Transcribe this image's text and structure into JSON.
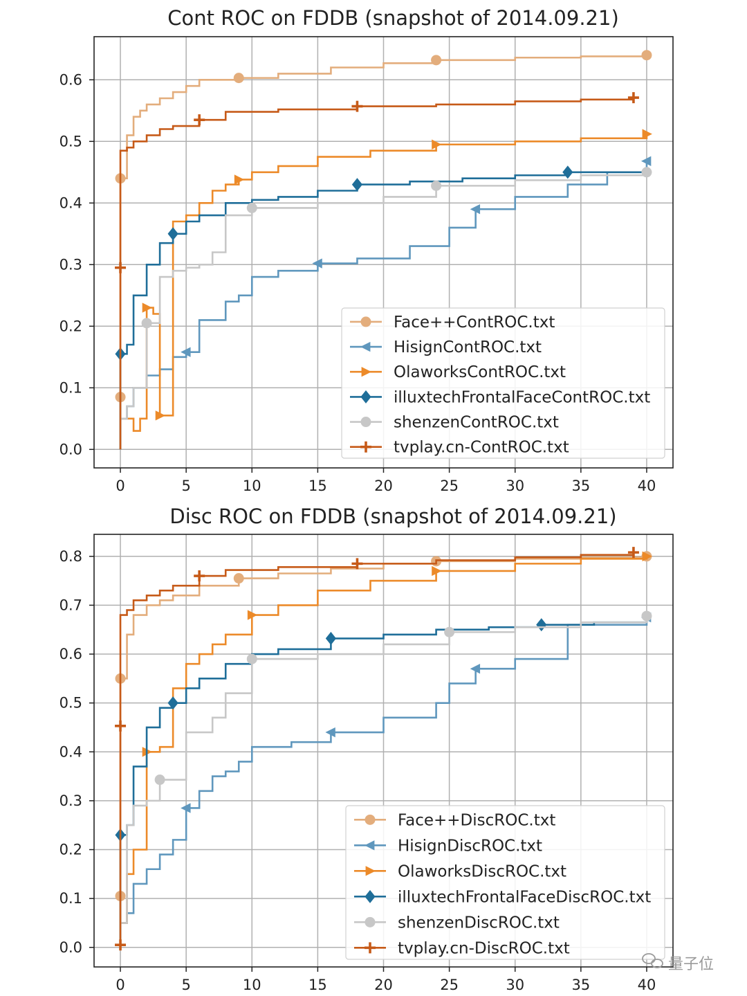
{
  "chart_data": [
    {
      "type": "line",
      "title": "Cont ROC on FDDB (snapshot of 2014.09.21)",
      "xlabel": "",
      "ylabel": "",
      "xlim": [
        -2,
        42
      ],
      "ylim": [
        -0.03,
        0.67
      ],
      "xticks": [
        "0",
        "5",
        "10",
        "15",
        "20",
        "25",
        "30",
        "35",
        "40"
      ],
      "yticks": [
        "0.0",
        "0.1",
        "0.2",
        "0.3",
        "0.4",
        "0.5",
        "0.6"
      ],
      "grid": true,
      "legend_position": "lower-right",
      "series": [
        {
          "name": "Face++ContROC.txt",
          "color": "#e3ad7c",
          "marker": "circle",
          "x": [
            0,
            0,
            0,
            0.5,
            1,
            1.5,
            2,
            3,
            4,
            5,
            6,
            7,
            9,
            12,
            16,
            20,
            24,
            30,
            35,
            40
          ],
          "y": [
            0.0,
            0.085,
            0.44,
            0.51,
            0.54,
            0.55,
            0.56,
            0.57,
            0.58,
            0.59,
            0.6,
            0.6,
            0.603,
            0.61,
            0.62,
            0.627,
            0.632,
            0.636,
            0.638,
            0.64
          ],
          "marker_indices": [
            1,
            2,
            12,
            16,
            19
          ]
        },
        {
          "name": "HisignContROC.txt",
          "color": "#5f97bd",
          "marker": "triangle-left",
          "x": [
            0,
            0.5,
            1,
            2,
            3,
            4,
            5,
            6,
            8,
            9,
            10,
            12,
            15,
            18,
            22,
            25,
            27,
            30,
            34,
            37,
            40
          ],
          "y": [
            0.05,
            0.07,
            0.1,
            0.12,
            0.13,
            0.15,
            0.158,
            0.21,
            0.24,
            0.25,
            0.28,
            0.29,
            0.302,
            0.31,
            0.33,
            0.36,
            0.39,
            0.41,
            0.43,
            0.45,
            0.468
          ],
          "marker_indices": [
            6,
            12,
            16,
            20
          ]
        },
        {
          "name": "OlaworksContROC.txt",
          "color": "#ec8a29",
          "marker": "triangle-right",
          "x": [
            0,
            1,
            1.5,
            2,
            2.5,
            3,
            4,
            5,
            6,
            7,
            8,
            9,
            10,
            12,
            15,
            19,
            24,
            30,
            35,
            40
          ],
          "y": [
            0.05,
            0.03,
            0.05,
            0.23,
            0.22,
            0.055,
            0.37,
            0.38,
            0.4,
            0.42,
            0.43,
            0.438,
            0.45,
            0.46,
            0.475,
            0.485,
            0.495,
            0.5,
            0.505,
            0.512
          ],
          "marker_indices": [
            3,
            5,
            11,
            16,
            19
          ]
        },
        {
          "name": "illuxtechFrontalFaceContROC.txt",
          "color": "#1f6e99",
          "marker": "diamond",
          "x": [
            0,
            0,
            0.5,
            1,
            2,
            3,
            4,
            5,
            6,
            8,
            10,
            12,
            15,
            18,
            22,
            26,
            30,
            34,
            40
          ],
          "y": [
            0.0,
            0.155,
            0.17,
            0.25,
            0.3,
            0.335,
            0.35,
            0.37,
            0.38,
            0.4,
            0.405,
            0.41,
            0.42,
            0.43,
            0.435,
            0.44,
            0.445,
            0.45,
            0.453
          ],
          "marker_indices": [
            1,
            6,
            13,
            17
          ]
        },
        {
          "name": "shenzenContROC.txt",
          "color": "#c7c7c7",
          "marker": "circle",
          "x": [
            0,
            0.5,
            1,
            2,
            3,
            4,
            5,
            6,
            7,
            8,
            10,
            15,
            20,
            24,
            30,
            35,
            40
          ],
          "y": [
            0.05,
            0.07,
            0.1,
            0.205,
            0.28,
            0.29,
            0.295,
            0.3,
            0.32,
            0.38,
            0.392,
            0.4,
            0.41,
            0.428,
            0.437,
            0.445,
            0.45
          ],
          "marker_indices": [
            3,
            10,
            13,
            16
          ]
        },
        {
          "name": "tvplay.cn-ContROC.txt",
          "color": "#c65a18",
          "marker": "plus",
          "x": [
            0,
            0,
            0,
            0.5,
            1,
            2,
            3,
            4,
            6,
            8,
            12,
            18,
            24,
            30,
            35,
            39
          ],
          "y": [
            0.0,
            0.295,
            0.485,
            0.49,
            0.5,
            0.51,
            0.52,
            0.525,
            0.535,
            0.548,
            0.552,
            0.557,
            0.56,
            0.565,
            0.568,
            0.571
          ],
          "marker_indices": [
            1,
            8,
            11,
            15
          ]
        }
      ]
    },
    {
      "type": "line",
      "title": "Disc ROC on FDDB (snapshot of 2014.09.21)",
      "xlabel": "",
      "ylabel": "",
      "xlim": [
        -2,
        42
      ],
      "ylim": [
        -0.04,
        0.845
      ],
      "xticks": [
        "0",
        "5",
        "10",
        "15",
        "20",
        "25",
        "30",
        "35",
        "40"
      ],
      "yticks": [
        "0.0",
        "0.1",
        "0.2",
        "0.3",
        "0.4",
        "0.5",
        "0.6",
        "0.7",
        "0.8"
      ],
      "grid": true,
      "legend_position": "lower-right",
      "series": [
        {
          "name": "Face++DiscROC.txt",
          "color": "#e3ad7c",
          "marker": "circle",
          "x": [
            0,
            0,
            0,
            0.5,
            1,
            2,
            3,
            4,
            6,
            9,
            12,
            16,
            20,
            24,
            30,
            35,
            40
          ],
          "y": [
            0.0,
            0.105,
            0.55,
            0.64,
            0.68,
            0.7,
            0.71,
            0.72,
            0.74,
            0.755,
            0.765,
            0.775,
            0.785,
            0.79,
            0.795,
            0.798,
            0.8
          ],
          "marker_indices": [
            1,
            2,
            9,
            13,
            16
          ]
        },
        {
          "name": "HisignDiscROC.txt",
          "color": "#5f97bd",
          "marker": "triangle-left",
          "x": [
            0,
            0.5,
            1,
            2,
            3,
            4,
            5,
            6,
            7,
            8,
            9,
            10,
            13,
            16,
            20,
            24,
            25,
            27,
            30,
            34,
            40
          ],
          "y": [
            0.05,
            0.07,
            0.13,
            0.16,
            0.19,
            0.22,
            0.285,
            0.32,
            0.35,
            0.36,
            0.38,
            0.41,
            0.42,
            0.44,
            0.47,
            0.5,
            0.54,
            0.57,
            0.59,
            0.66,
            0.675
          ],
          "marker_indices": [
            6,
            13,
            17,
            20
          ]
        },
        {
          "name": "OlaworksDiscROC.txt",
          "color": "#ec8a29",
          "marker": "triangle-right",
          "x": [
            0,
            0.5,
            1,
            2,
            3,
            4,
            5,
            6,
            7,
            8,
            10,
            12,
            15,
            19,
            24,
            30,
            35,
            40
          ],
          "y": [
            0.05,
            0.15,
            0.2,
            0.4,
            0.41,
            0.53,
            0.58,
            0.6,
            0.62,
            0.64,
            0.68,
            0.7,
            0.73,
            0.75,
            0.77,
            0.785,
            0.795,
            0.8
          ],
          "marker_indices": [
            3,
            10,
            14,
            17
          ]
        },
        {
          "name": "illuxtechFrontalFaceDiscROC.txt",
          "color": "#1f6e99",
          "marker": "diamond",
          "x": [
            0,
            0,
            0.5,
            1,
            2,
            3,
            4,
            5,
            6,
            8,
            10,
            12,
            16,
            20,
            24,
            28,
            32,
            36,
            40
          ],
          "y": [
            0.0,
            0.23,
            0.25,
            0.37,
            0.45,
            0.49,
            0.5,
            0.53,
            0.55,
            0.58,
            0.6,
            0.61,
            0.632,
            0.64,
            0.65,
            0.655,
            0.66,
            0.665,
            0.67
          ],
          "marker_indices": [
            1,
            6,
            12,
            16
          ]
        },
        {
          "name": "shenzenDiscROC.txt",
          "color": "#c7c7c7",
          "marker": "circle",
          "x": [
            0,
            0.5,
            1,
            2,
            3,
            5,
            7,
            8,
            10,
            15,
            20,
            25,
            30,
            35,
            40
          ],
          "y": [
            0.05,
            0.25,
            0.29,
            0.3,
            0.343,
            0.44,
            0.47,
            0.52,
            0.59,
            0.6,
            0.62,
            0.645,
            0.655,
            0.665,
            0.678
          ],
          "marker_indices": [
            4,
            8,
            11,
            14
          ]
        },
        {
          "name": "tvplay.cn-DiscROC.txt",
          "color": "#c65a18",
          "marker": "plus",
          "x": [
            0,
            0,
            0,
            0.5,
            1,
            2,
            3,
            4,
            6,
            8,
            12,
            18,
            24,
            30,
            35,
            39
          ],
          "y": [
            0.005,
            0.453,
            0.68,
            0.69,
            0.71,
            0.72,
            0.73,
            0.74,
            0.76,
            0.772,
            0.778,
            0.785,
            0.792,
            0.798,
            0.803,
            0.808
          ],
          "marker_indices": [
            0,
            1,
            8,
            11,
            15
          ]
        }
      ]
    }
  ],
  "watermark": "量子位"
}
